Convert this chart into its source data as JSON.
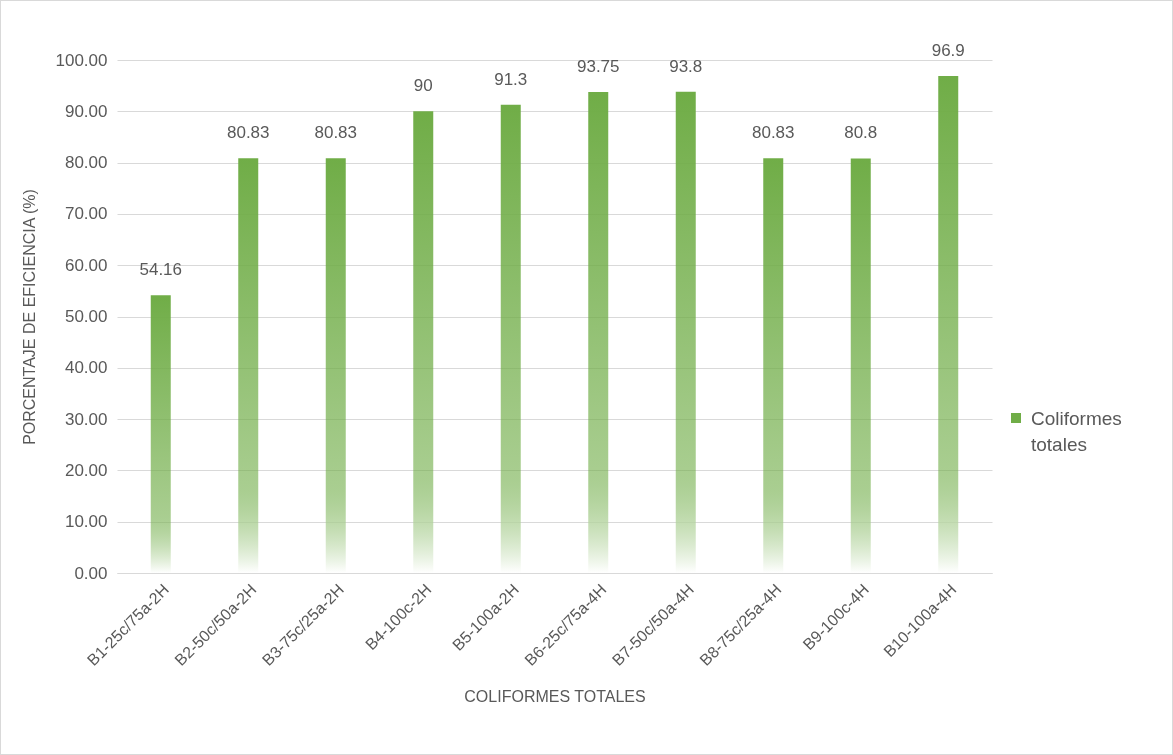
{
  "chart_data": {
    "type": "bar",
    "xlabel": "COLIFORMES TOTALES",
    "ylabel": "PORCENTAJE DE EFICIENCIA (%)",
    "categories": [
      "B1-25c/75a-2H",
      "B2-50c/50a-2H",
      "B3-75c/25a-2H",
      "B4-100c-2H",
      "B5-100a-2H",
      "B6-25c/75a-4H",
      "B7-50c/50a-4H",
      "B8-75c/25a-4H",
      "B9-100c-4H",
      "B10-100a-4H"
    ],
    "series": [
      {
        "name": "Coliformes totales",
        "color": "#70ad47",
        "values": [
          54.16,
          80.83,
          80.83,
          90,
          91.3,
          93.75,
          93.8,
          80.83,
          80.8,
          96.9
        ]
      }
    ],
    "data_labels": true,
    "ylim": [
      0,
      100
    ],
    "yticks": [
      {
        "value": 0,
        "label": "0.00"
      },
      {
        "value": 10,
        "label": "10.00"
      },
      {
        "value": 20,
        "label": "20.00"
      },
      {
        "value": 30,
        "label": "30.00"
      },
      {
        "value": 40,
        "label": "40.00"
      },
      {
        "value": 50,
        "label": "50.00"
      },
      {
        "value": 60,
        "label": "60.00"
      },
      {
        "value": 70,
        "label": "70.00"
      },
      {
        "value": 80,
        "label": "80.00"
      },
      {
        "value": 90,
        "label": "90.00"
      },
      {
        "value": 100,
        "label": "100.00"
      }
    ],
    "grid": "y",
    "legend": "right"
  }
}
